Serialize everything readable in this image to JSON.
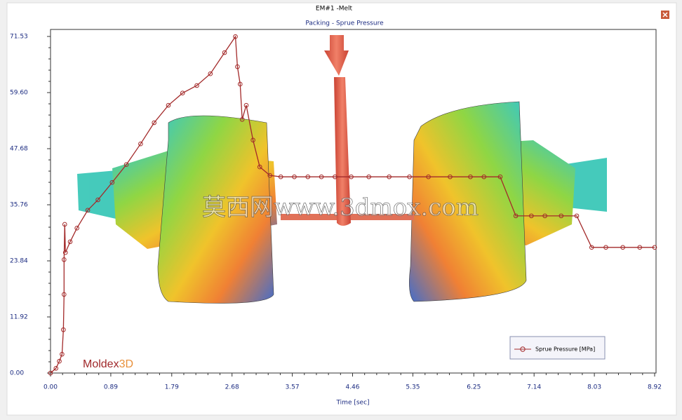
{
  "window_title": "EM#1 -Melt",
  "chart_data": {
    "type": "line",
    "title": "Packing - Sprue Pressure",
    "x_label": "Time [sec]",
    "x": [
      0,
      0.08,
      0.13,
      0.17,
      0.19,
      0.2,
      0.2,
      0.21,
      0.22,
      0.29,
      0.39,
      0.55,
      0.7,
      0.91,
      1.12,
      1.33,
      1.53,
      1.74,
      1.95,
      2.16,
      2.36,
      2.57,
      2.73,
      2.76,
      2.8,
      2.83,
      2.89,
      2.99,
      3.09,
      3.24,
      3.4,
      3.6,
      3.8,
      4.0,
      4.2,
      4.44,
      4.7,
      5.0,
      5.3,
      5.58,
      5.9,
      6.2,
      6.4,
      6.64,
      6.87,
      7.1,
      7.3,
      7.54,
      7.77,
      7.99,
      8.2,
      8.45,
      8.7,
      8.92
    ],
    "series": [
      {
        "name": "Sprue Pressure [MPa]",
        "color": "#a32a2a",
        "values": [
          0,
          1.0,
          2.5,
          4.0,
          9.2,
          16.7,
          24.1,
          31.6,
          25.6,
          27.9,
          30.8,
          34.6,
          36.8,
          40.5,
          44.3,
          48.7,
          53.2,
          56.9,
          59.5,
          61.1,
          63.6,
          68.1,
          71.5,
          65.1,
          61.4,
          53.9,
          56.9,
          49.5,
          43.8,
          42.0,
          41.7,
          41.7,
          41.7,
          41.7,
          41.7,
          41.7,
          41.7,
          41.7,
          41.7,
          41.7,
          41.7,
          41.7,
          41.7,
          41.7,
          33.4,
          33.4,
          33.4,
          33.4,
          33.4,
          26.7,
          26.7,
          26.7,
          26.7,
          26.7
        ]
      }
    ],
    "xlim": [
      0,
      8.92
    ],
    "ylim": [
      0,
      73.02
    ],
    "xticks": [
      {
        "value": 0,
        "label": "0.00"
      },
      0.89,
      1.79,
      2.68,
      3.57,
      4.46,
      5.35,
      6.25,
      7.14,
      8.03,
      8.92
    ],
    "yticks": [
      {
        "value": 0,
        "label": "0.00"
      },
      11.92,
      23.84,
      35.76,
      47.68,
      {
        "value": 59.6,
        "label": "59.60"
      },
      71.53
    ],
    "markers": true
  },
  "watermark": "莫西网www.3dmox.com",
  "logo": {
    "main": "Moldex",
    "suffix": "3D"
  }
}
